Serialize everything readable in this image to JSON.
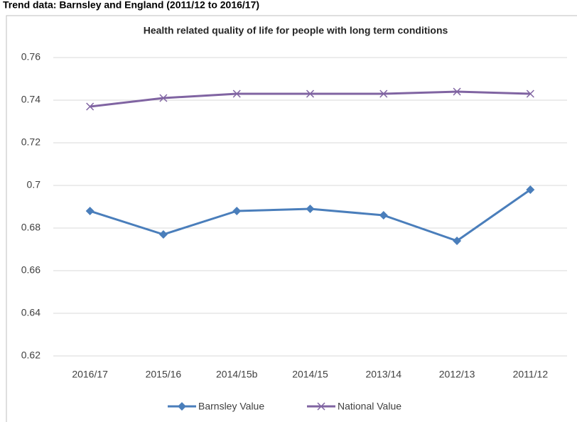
{
  "page_title": "Trend data: Barnsley and England (2011/12 to 2016/17)",
  "chart_data": {
    "type": "line",
    "title": "Health related quality of life for people with long term conditions",
    "categories": [
      "2016/17",
      "2015/16",
      "2014/15b",
      "2014/15",
      "2013/14",
      "2012/13",
      "2011/12"
    ],
    "series": [
      {
        "name": "Barnsley Value",
        "color": "#4a7ebb",
        "marker": "diamond",
        "values": [
          0.688,
          0.677,
          0.688,
          0.689,
          0.686,
          0.674,
          0.698
        ]
      },
      {
        "name": "National Value",
        "color": "#8064a2",
        "marker": "x",
        "values": [
          0.737,
          0.741,
          0.743,
          0.743,
          0.743,
          0.744,
          0.743
        ]
      }
    ],
    "ylim": [
      0.62,
      0.76
    ],
    "yticks": [
      0.62,
      0.64,
      0.66,
      0.68,
      0.7,
      0.72,
      0.74,
      0.76
    ],
    "grid": true,
    "legend": "bottom"
  }
}
